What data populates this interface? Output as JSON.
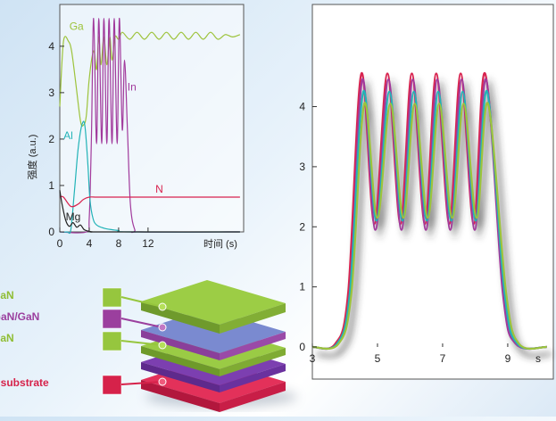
{
  "colors": {
    "ga": "#9dc33b",
    "in": "#a13a9c",
    "al": "#22b3b7",
    "n": "#d8234f",
    "mg": "#222222",
    "gan_layer": "#96c63e",
    "ingan_layer": "#9b3f9e",
    "sapphire_layer": "#d6224a"
  },
  "chart_data": [
    {
      "type": "line",
      "title": "",
      "xlabel": "时间 (s)",
      "ylabel": "强度 (a.u.)",
      "xlim": [
        0,
        25
      ],
      "ylim": [
        0,
        4.9
      ],
      "xticks": [
        0,
        4,
        8,
        12
      ],
      "yticks": [
        0,
        1,
        2,
        3,
        4
      ],
      "series": [
        {
          "name": "Ga",
          "x": [
            0,
            0.5,
            1.2,
            1.6,
            2.1,
            2.8,
            3.2,
            3.6,
            4.0,
            4.6,
            5.0,
            5.3,
            5.6,
            6.0,
            6.4,
            6.8,
            7.1,
            7.5,
            8.0,
            8.5,
            9.5,
            10.5,
            11.5,
            12.5,
            13.5,
            14.5,
            15.5,
            16.5,
            17.5,
            18.5,
            19.5,
            20.5,
            21.5,
            22.5,
            23.5,
            24.5
          ],
          "y": [
            2.7,
            4.1,
            4.1,
            3.9,
            3.3,
            2.4,
            2.3,
            2.5,
            3.3,
            3.9,
            3.5,
            4.2,
            3.6,
            4.2,
            3.6,
            4.2,
            3.7,
            4.2,
            4.15,
            4.3,
            4.15,
            4.3,
            4.15,
            4.3,
            4.15,
            4.3,
            4.15,
            4.3,
            4.15,
            4.3,
            4.15,
            4.3,
            4.15,
            4.25,
            4.2,
            4.25
          ]
        },
        {
          "name": "In",
          "x": [
            0,
            3.6,
            4.0,
            4.3,
            4.6,
            5.0,
            5.3,
            5.7,
            6.0,
            6.4,
            6.7,
            7.1,
            7.4,
            7.8,
            8.1,
            8.5,
            8.8,
            9.2,
            9.6,
            10.2,
            11,
            24.5
          ],
          "y": [
            0,
            0,
            0.3,
            2.0,
            4.6,
            1.9,
            4.6,
            1.9,
            4.6,
            1.9,
            4.6,
            1.9,
            4.6,
            1.9,
            4.6,
            2.2,
            3.7,
            2.2,
            0.6,
            0.05,
            0,
            0
          ]
        },
        {
          "name": "Al",
          "x": [
            0,
            1.0,
            1.5,
            2.0,
            2.5,
            3.0,
            3.4,
            3.8,
            4.1,
            4.5,
            5.0,
            6.0,
            7.0,
            8.0,
            9.5,
            24.5
          ],
          "y": [
            0,
            0,
            0.05,
            0.9,
            1.8,
            2.3,
            2.3,
            1.5,
            0.7,
            0.3,
            0.15,
            0.08,
            0.05,
            0.03,
            0,
            0
          ]
        },
        {
          "name": "N",
          "x": [
            0,
            0.5,
            1.5,
            2.5,
            3.2,
            4.0,
            5.0,
            7.0,
            10.0,
            24.5
          ],
          "y": [
            0.75,
            0.75,
            0.55,
            0.6,
            0.7,
            0.75,
            0.75,
            0.75,
            0.75,
            0.75
          ]
        },
        {
          "name": "Mg",
          "x": [
            0,
            0.3,
            0.8,
            1.3,
            1.8,
            2.3,
            2.8,
            3.3,
            3.8,
            4.5,
            6.0,
            24.5
          ],
          "y": [
            0.9,
            0.6,
            0.25,
            0.12,
            0.2,
            0.1,
            0.15,
            0.05,
            0.02,
            0.0,
            0,
            0
          ]
        }
      ],
      "annotations": [
        {
          "text": "Ga",
          "x": 1.3,
          "y": 4.35
        },
        {
          "text": "In",
          "x": 9.2,
          "y": 3.05
        },
        {
          "text": "Al",
          "x": 0.5,
          "y": 2.0
        },
        {
          "text": "N",
          "x": 13.0,
          "y": 0.85
        },
        {
          "text": "Mg",
          "x": 0.8,
          "y": 0.25
        }
      ]
    },
    {
      "type": "line",
      "title": "",
      "xlabel": "s",
      "ylabel": "",
      "xlim": [
        3,
        10.4
      ],
      "ylim": [
        0,
        5.7
      ],
      "xticks": [
        3,
        5,
        7,
        9
      ],
      "yticks": [
        0,
        1,
        2,
        3,
        4
      ],
      "x_unit_label": "s",
      "series": [
        {
          "peak": 4.55,
          "trough": 2.05,
          "start": 3.9,
          "end": 9.1
        },
        {
          "peak": 4.45,
          "trough": 1.95,
          "start": 3.95,
          "end": 9.05
        },
        {
          "peak": 4.25,
          "trough": 2.1,
          "start": 3.95,
          "end": 9.1
        },
        {
          "peak": 4.05,
          "trough": 2.15,
          "start": 4.0,
          "end": 9.15
        }
      ],
      "peak_positions": [
        4.55,
        5.35,
        6.1,
        6.85,
        7.6,
        8.35
      ],
      "trough_positions": [
        4.95,
        5.75,
        6.5,
        7.25,
        8.0
      ]
    }
  ],
  "layer_stack": {
    "labels": [
      "GaN",
      "InGaN/GaN",
      "GaN",
      "Sapphire substrate"
    ]
  }
}
